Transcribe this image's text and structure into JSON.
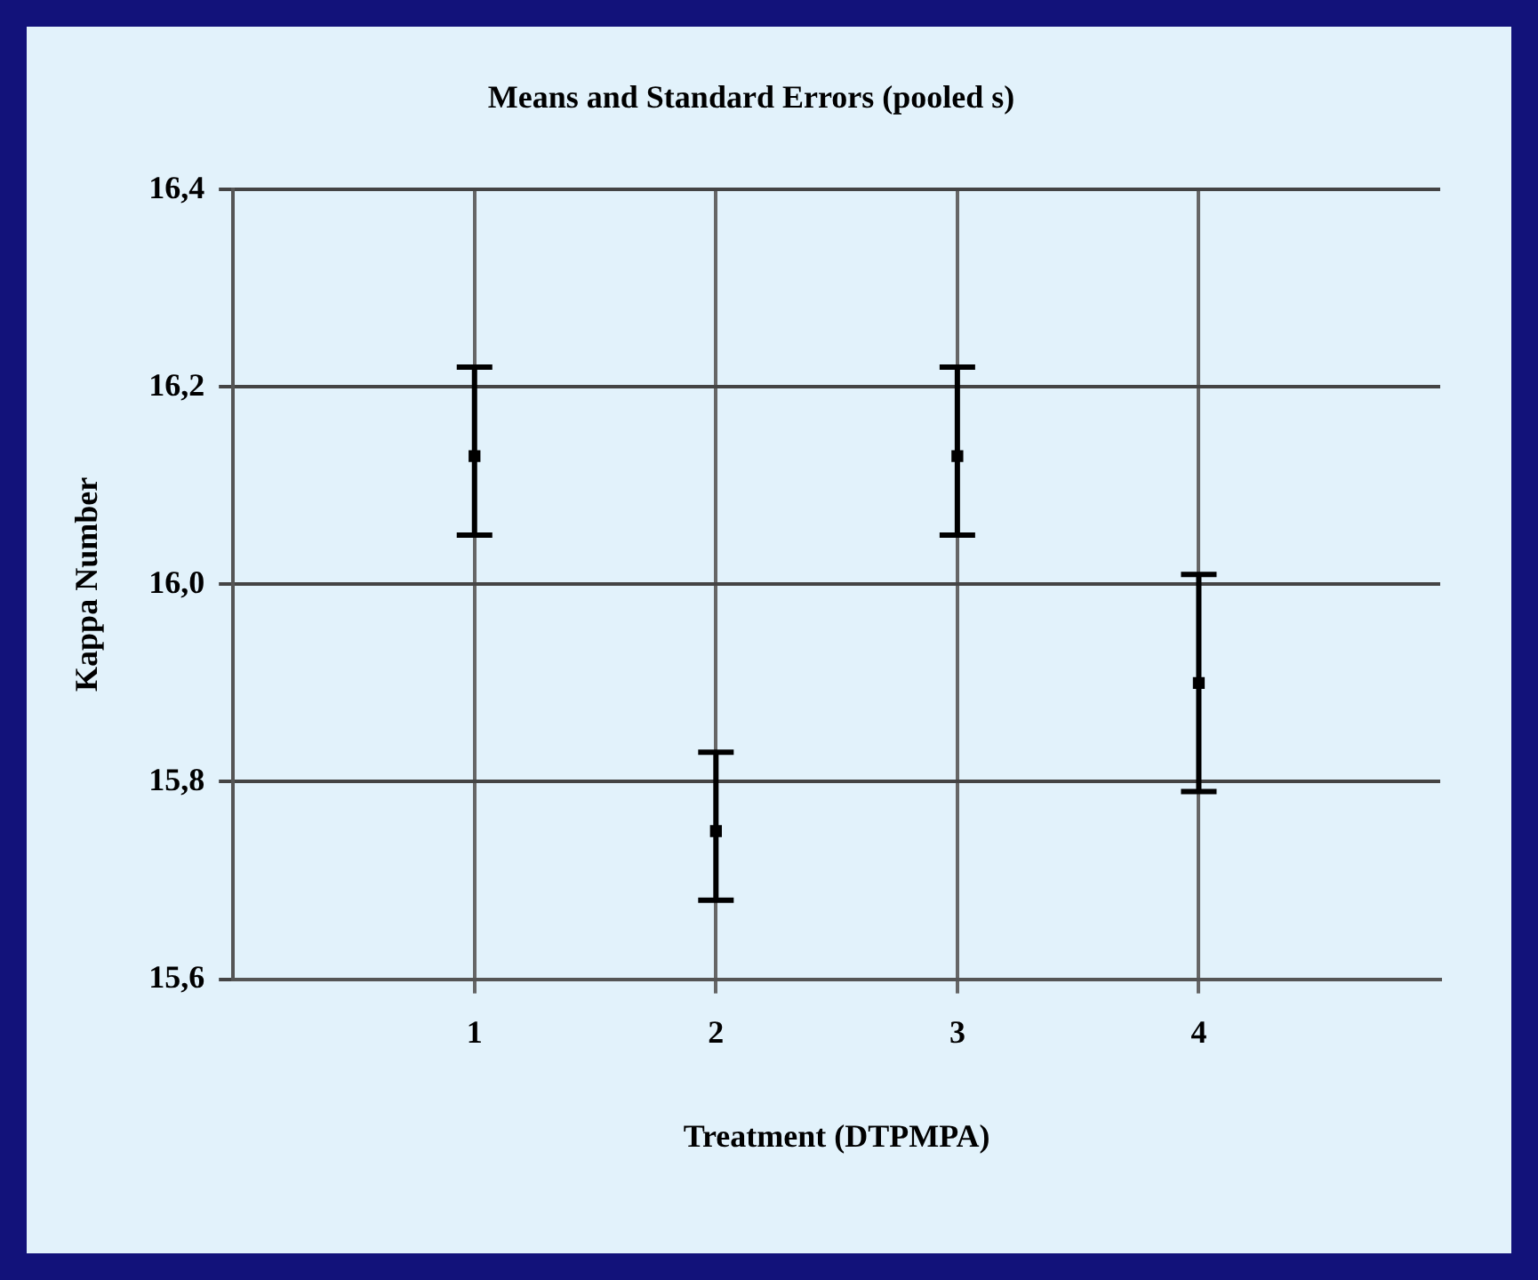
{
  "chart_data": {
    "type": "scatter",
    "title": "Means and Standard Errors (pooled s)",
    "xlabel": "Treatment (DTPMPA)",
    "ylabel": "Kappa Number",
    "x": [
      1,
      2,
      3,
      4
    ],
    "series": [
      {
        "color": "#000000",
        "values": [
          16.13,
          15.75,
          16.13,
          15.9
        ],
        "errors": [
          [
            16.05,
            16.22
          ],
          [
            15.68,
            15.83
          ],
          [
            16.05,
            16.22
          ],
          [
            15.79,
            16.01
          ]
        ]
      }
    ],
    "xlim": [
      0,
      5
    ],
    "xticks": [
      1,
      2,
      3,
      4
    ],
    "ylim": [
      15.6,
      16.4
    ],
    "yticks": [
      {
        "value": 15.6,
        "label": "15,6"
      },
      {
        "value": 15.8,
        "label": "15,8"
      },
      {
        "value": 16,
        "label": "16,0"
      },
      {
        "value": 16.2,
        "label": "16,2"
      },
      {
        "value": 16.4,
        "label": "16,4"
      }
    ],
    "grid": true,
    "legend": false,
    "marker": "square"
  }
}
